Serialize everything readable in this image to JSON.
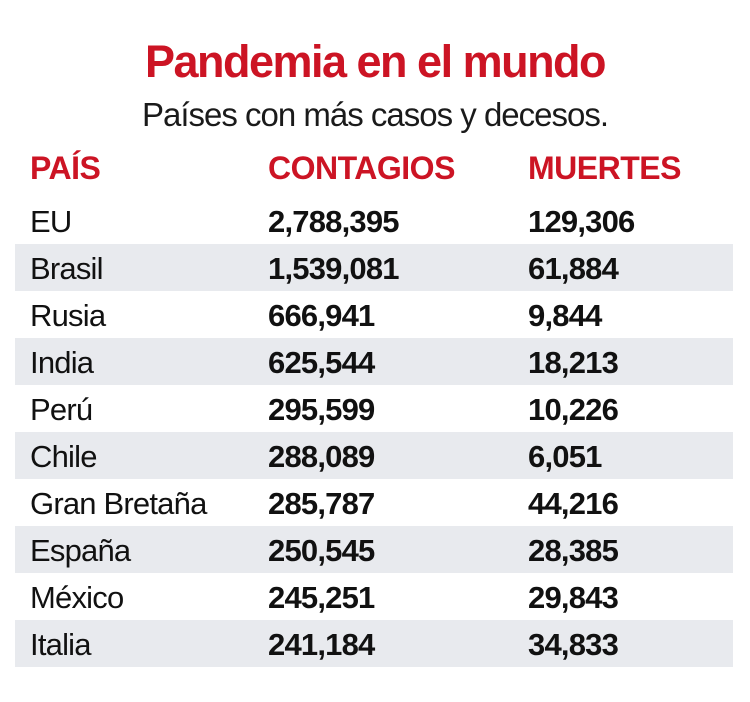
{
  "title": "Pandemia en el mundo",
  "subtitle": "Países con más casos y decesos.",
  "colors": {
    "accent": "#cc1424",
    "stripe": "#e8eaee"
  },
  "chart_data": {
    "type": "table",
    "columns": [
      "PAÍS",
      "CONTAGIOS",
      "MUERTES"
    ],
    "rows": [
      [
        "EU",
        "2,788,395",
        "129,306"
      ],
      [
        "Brasil",
        "1,539,081",
        "61,884"
      ],
      [
        "Rusia",
        "666,941",
        "9,844"
      ],
      [
        "India",
        "625,544",
        "18,213"
      ],
      [
        "Perú",
        "295,599",
        "10,226"
      ],
      [
        "Chile",
        "288,089",
        "6,051"
      ],
      [
        "Gran Bretaña",
        "285,787",
        "44,216"
      ],
      [
        "España",
        "250,545",
        "28,385"
      ],
      [
        "México",
        "245,251",
        "29,843"
      ],
      [
        "Italia",
        "241,184",
        "34,833"
      ]
    ]
  }
}
